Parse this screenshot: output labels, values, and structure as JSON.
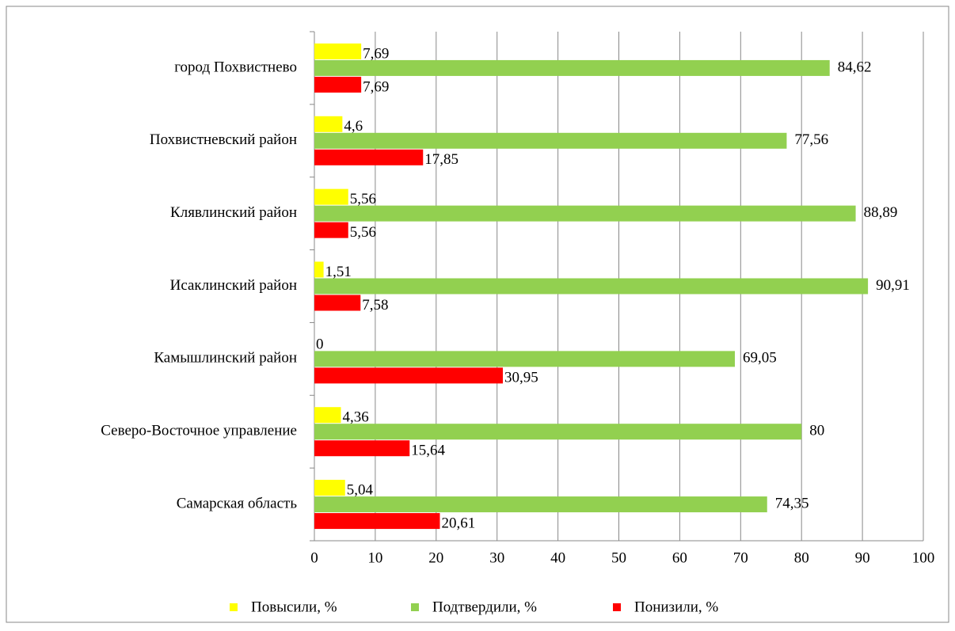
{
  "chart_data": {
    "type": "bar",
    "orientation": "horizontal",
    "categories": [
      "город Похвистнево",
      "Похвистневский район",
      "Клявлинский район",
      "Исаклинский район",
      "Камышлинский район",
      "Северо-Восточное управление",
      "Самарская область"
    ],
    "series": [
      {
        "name": "Повысили, %",
        "color": "#ffff00",
        "values": [
          7.69,
          4.6,
          5.56,
          1.51,
          0,
          4.36,
          5.04
        ],
        "value_labels": [
          "7,69",
          "4,6",
          "5,56",
          "1,51",
          "0",
          "4,36",
          "5,04"
        ]
      },
      {
        "name": "Подтвердили, %",
        "color": "#92d050",
        "values": [
          84.62,
          77.56,
          88.89,
          90.91,
          69.05,
          80,
          74.35
        ],
        "value_labels": [
          "84,62",
          "77,56",
          "88,89",
          "90,91",
          "69,05",
          "80",
          "74,35"
        ]
      },
      {
        "name": "Понизили,  %",
        "color": "#ff0000",
        "values": [
          7.69,
          17.85,
          5.56,
          7.58,
          30.95,
          15.64,
          20.61
        ],
        "value_labels": [
          "7,69",
          "17,85",
          "5,56",
          "7,58",
          "30,95",
          "15,64",
          "20,61"
        ]
      }
    ],
    "xlim": [
      0,
      100
    ],
    "xticks": [
      0,
      10,
      20,
      30,
      40,
      50,
      60,
      70,
      80,
      90,
      100
    ],
    "grid": true,
    "legend": "bottom"
  }
}
